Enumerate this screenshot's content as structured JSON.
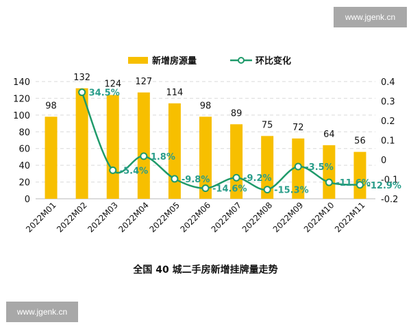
{
  "watermarks": {
    "top_right": "www.jgenk.cn",
    "bottom_left": "www.jgenk.cn"
  },
  "colors": {
    "bar": "#F7BF00",
    "line": "#1F9A6A",
    "line_label": "#2A9D8A",
    "grid": "#d9d9d9",
    "text": "#111111"
  },
  "chart_data": {
    "type": "bar+line",
    "title": "全国 40 城二手房新增挂牌量走势",
    "categories": [
      "2022M01",
      "2022M02",
      "2022M03",
      "2022M04",
      "2022M05",
      "2022M06",
      "2022M07",
      "2022M08",
      "2022M09",
      "2022M10",
      "2022M11"
    ],
    "series": [
      {
        "name": "新增房源量",
        "type": "bar",
        "axis": "left",
        "values": [
          98,
          132,
          124,
          127,
          114,
          98,
          89,
          75,
          72,
          64,
          56
        ],
        "labels": [
          "98",
          "132",
          "124",
          "127",
          "114",
          "98",
          "89",
          "75",
          "72",
          "64",
          "56"
        ]
      },
      {
        "name": "环比变化",
        "type": "line",
        "axis": "right",
        "values": [
          null,
          0.345,
          -0.054,
          0.018,
          -0.098,
          -0.146,
          -0.092,
          -0.153,
          -0.035,
          -0.116,
          -0.129
        ],
        "labels": [
          null,
          "34.5%",
          "-5.4%",
          "1.8%",
          "-9.8%",
          "-14.6%",
          "-9.2%",
          "-15.3%",
          "-3.5%",
          "-11.6%",
          "-12.9%"
        ]
      }
    ],
    "left_axis": {
      "ylim": [
        0,
        140
      ],
      "ticks": [
        "0",
        "20",
        "40",
        "60",
        "80",
        "100",
        "120",
        "140"
      ]
    },
    "right_axis": {
      "ylim": [
        -0.2,
        0.4
      ],
      "ticks": [
        "-0.2",
        "-0.1",
        "0",
        "0.1",
        "0.2",
        "0.3",
        "0.4"
      ]
    },
    "legend": {
      "position": "top",
      "items": [
        "新增房源量",
        "环比变化"
      ]
    },
    "grid": "dashed horizontal"
  }
}
